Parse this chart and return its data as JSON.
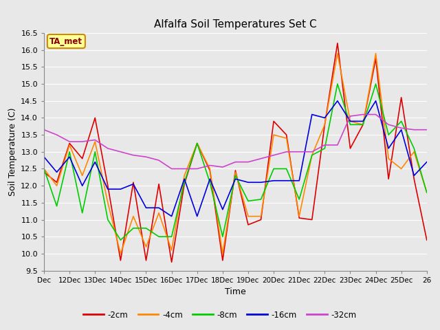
{
  "title": "Alfalfa Soil Temperatures Set C",
  "xlabel": "Time",
  "ylabel": "Soil Temperature (C)",
  "xlim": [
    11,
    26
  ],
  "ylim": [
    9.5,
    16.5
  ],
  "xtick_labels": [
    "Dec",
    "12Dec",
    "13Dec",
    "14Dec",
    "15Dec",
    "16Dec",
    "17Dec",
    "18Dec",
    "19Dec",
    "20Dec",
    "21Dec",
    "22Dec",
    "23Dec",
    "24Dec",
    "25Dec",
    "26"
  ],
  "xtick_positions": [
    11,
    12,
    13,
    14,
    15,
    16,
    17,
    18,
    19,
    20,
    21,
    22,
    23,
    24,
    25,
    26
  ],
  "ytick_positions": [
    9.5,
    10.0,
    10.5,
    11.0,
    11.5,
    12.0,
    12.5,
    13.0,
    13.5,
    14.0,
    14.5,
    15.0,
    15.5,
    16.0,
    16.5
  ],
  "background_color": "#e8e8e8",
  "plot_bg_color": "#e8e8e8",
  "grid_color": "#ffffff",
  "annotation_text": "TA_met",
  "annotation_bg": "#ffff99",
  "annotation_border": "#cc8800",
  "series": [
    {
      "label": "-2cm",
      "color": "#dd0000",
      "x": [
        11,
        11.5,
        12,
        12.5,
        13,
        13.5,
        14,
        14.5,
        15,
        15.5,
        16,
        16.5,
        17,
        17.5,
        18,
        18.5,
        19,
        19.5,
        20,
        20.5,
        21,
        21.5,
        22,
        22.5,
        23,
        23.5,
        24,
        24.5,
        25,
        25.5,
        26
      ],
      "y": [
        12.4,
        12.1,
        13.25,
        12.8,
        14.0,
        12.0,
        9.8,
        12.1,
        9.8,
        12.05,
        9.75,
        12.05,
        13.25,
        12.45,
        9.8,
        12.45,
        10.85,
        11.0,
        13.9,
        13.5,
        11.05,
        11.0,
        13.8,
        16.2,
        13.1,
        13.8,
        15.75,
        12.2,
        14.6,
        12.2,
        10.4
      ]
    },
    {
      "label": "-4cm",
      "color": "#ff8800",
      "x": [
        11,
        11.5,
        12,
        12.5,
        13,
        13.5,
        14,
        14.5,
        15,
        15.5,
        16,
        16.5,
        17,
        17.5,
        18,
        18.5,
        19,
        19.5,
        20,
        20.5,
        21,
        21.5,
        22,
        22.5,
        23,
        23.5,
        24,
        24.5,
        25,
        25.5,
        26
      ],
      "y": [
        12.5,
        12.0,
        13.2,
        12.3,
        13.3,
        11.5,
        10.0,
        11.1,
        10.2,
        11.2,
        10.1,
        12.3,
        13.25,
        12.5,
        10.0,
        12.4,
        11.1,
        11.1,
        13.5,
        13.4,
        11.1,
        12.9,
        13.8,
        15.9,
        13.9,
        13.8,
        15.9,
        12.8,
        12.5,
        13.0,
        11.8
      ]
    },
    {
      "label": "-8cm",
      "color": "#00cc00",
      "x": [
        11,
        11.5,
        12,
        12.5,
        13,
        13.5,
        14,
        14.5,
        15,
        15.5,
        16,
        16.5,
        17,
        17.5,
        18,
        18.5,
        19,
        19.5,
        20,
        20.5,
        21,
        21.5,
        22,
        22.5,
        23,
        23.5,
        24,
        24.5,
        25,
        25.5,
        26
      ],
      "y": [
        12.5,
        11.4,
        13.0,
        11.2,
        13.0,
        11.0,
        10.4,
        10.75,
        10.75,
        10.5,
        10.5,
        12.1,
        13.25,
        12.1,
        10.5,
        12.3,
        11.55,
        11.6,
        12.5,
        12.5,
        11.6,
        12.9,
        13.1,
        15.0,
        13.8,
        13.8,
        15.0,
        13.5,
        13.9,
        13.1,
        11.8
      ]
    },
    {
      "label": "-16cm",
      "color": "#0000dd",
      "x": [
        11,
        11.5,
        12,
        12.5,
        13,
        13.5,
        14,
        14.5,
        15,
        15.5,
        16,
        16.5,
        17,
        17.5,
        18,
        18.5,
        19,
        19.5,
        20,
        20.5,
        21,
        21.5,
        22,
        22.5,
        23,
        23.5,
        24,
        24.5,
        25,
        25.5,
        26
      ],
      "y": [
        12.85,
        12.4,
        12.85,
        12.0,
        12.7,
        11.9,
        11.9,
        12.05,
        11.35,
        11.35,
        11.1,
        12.2,
        11.1,
        12.2,
        11.3,
        12.2,
        12.1,
        12.1,
        12.15,
        12.15,
        12.15,
        14.1,
        14.0,
        14.5,
        13.9,
        13.9,
        14.5,
        13.1,
        13.65,
        12.3,
        12.7
      ]
    },
    {
      "label": "-32cm",
      "color": "#cc44cc",
      "x": [
        11,
        11.5,
        12,
        12.5,
        13,
        13.5,
        14,
        14.5,
        15,
        15.5,
        16,
        16.5,
        17,
        17.5,
        18,
        18.5,
        19,
        19.5,
        20,
        20.5,
        21,
        21.5,
        22,
        22.5,
        23,
        23.5,
        24,
        24.5,
        25,
        25.5,
        26
      ],
      "y": [
        13.65,
        13.5,
        13.3,
        13.3,
        13.35,
        13.1,
        13.0,
        12.9,
        12.85,
        12.75,
        12.5,
        12.5,
        12.5,
        12.6,
        12.55,
        12.7,
        12.7,
        12.8,
        12.9,
        13.0,
        13.0,
        13.0,
        13.2,
        13.2,
        14.05,
        14.1,
        14.1,
        13.8,
        13.7,
        13.65,
        13.65
      ]
    }
  ]
}
